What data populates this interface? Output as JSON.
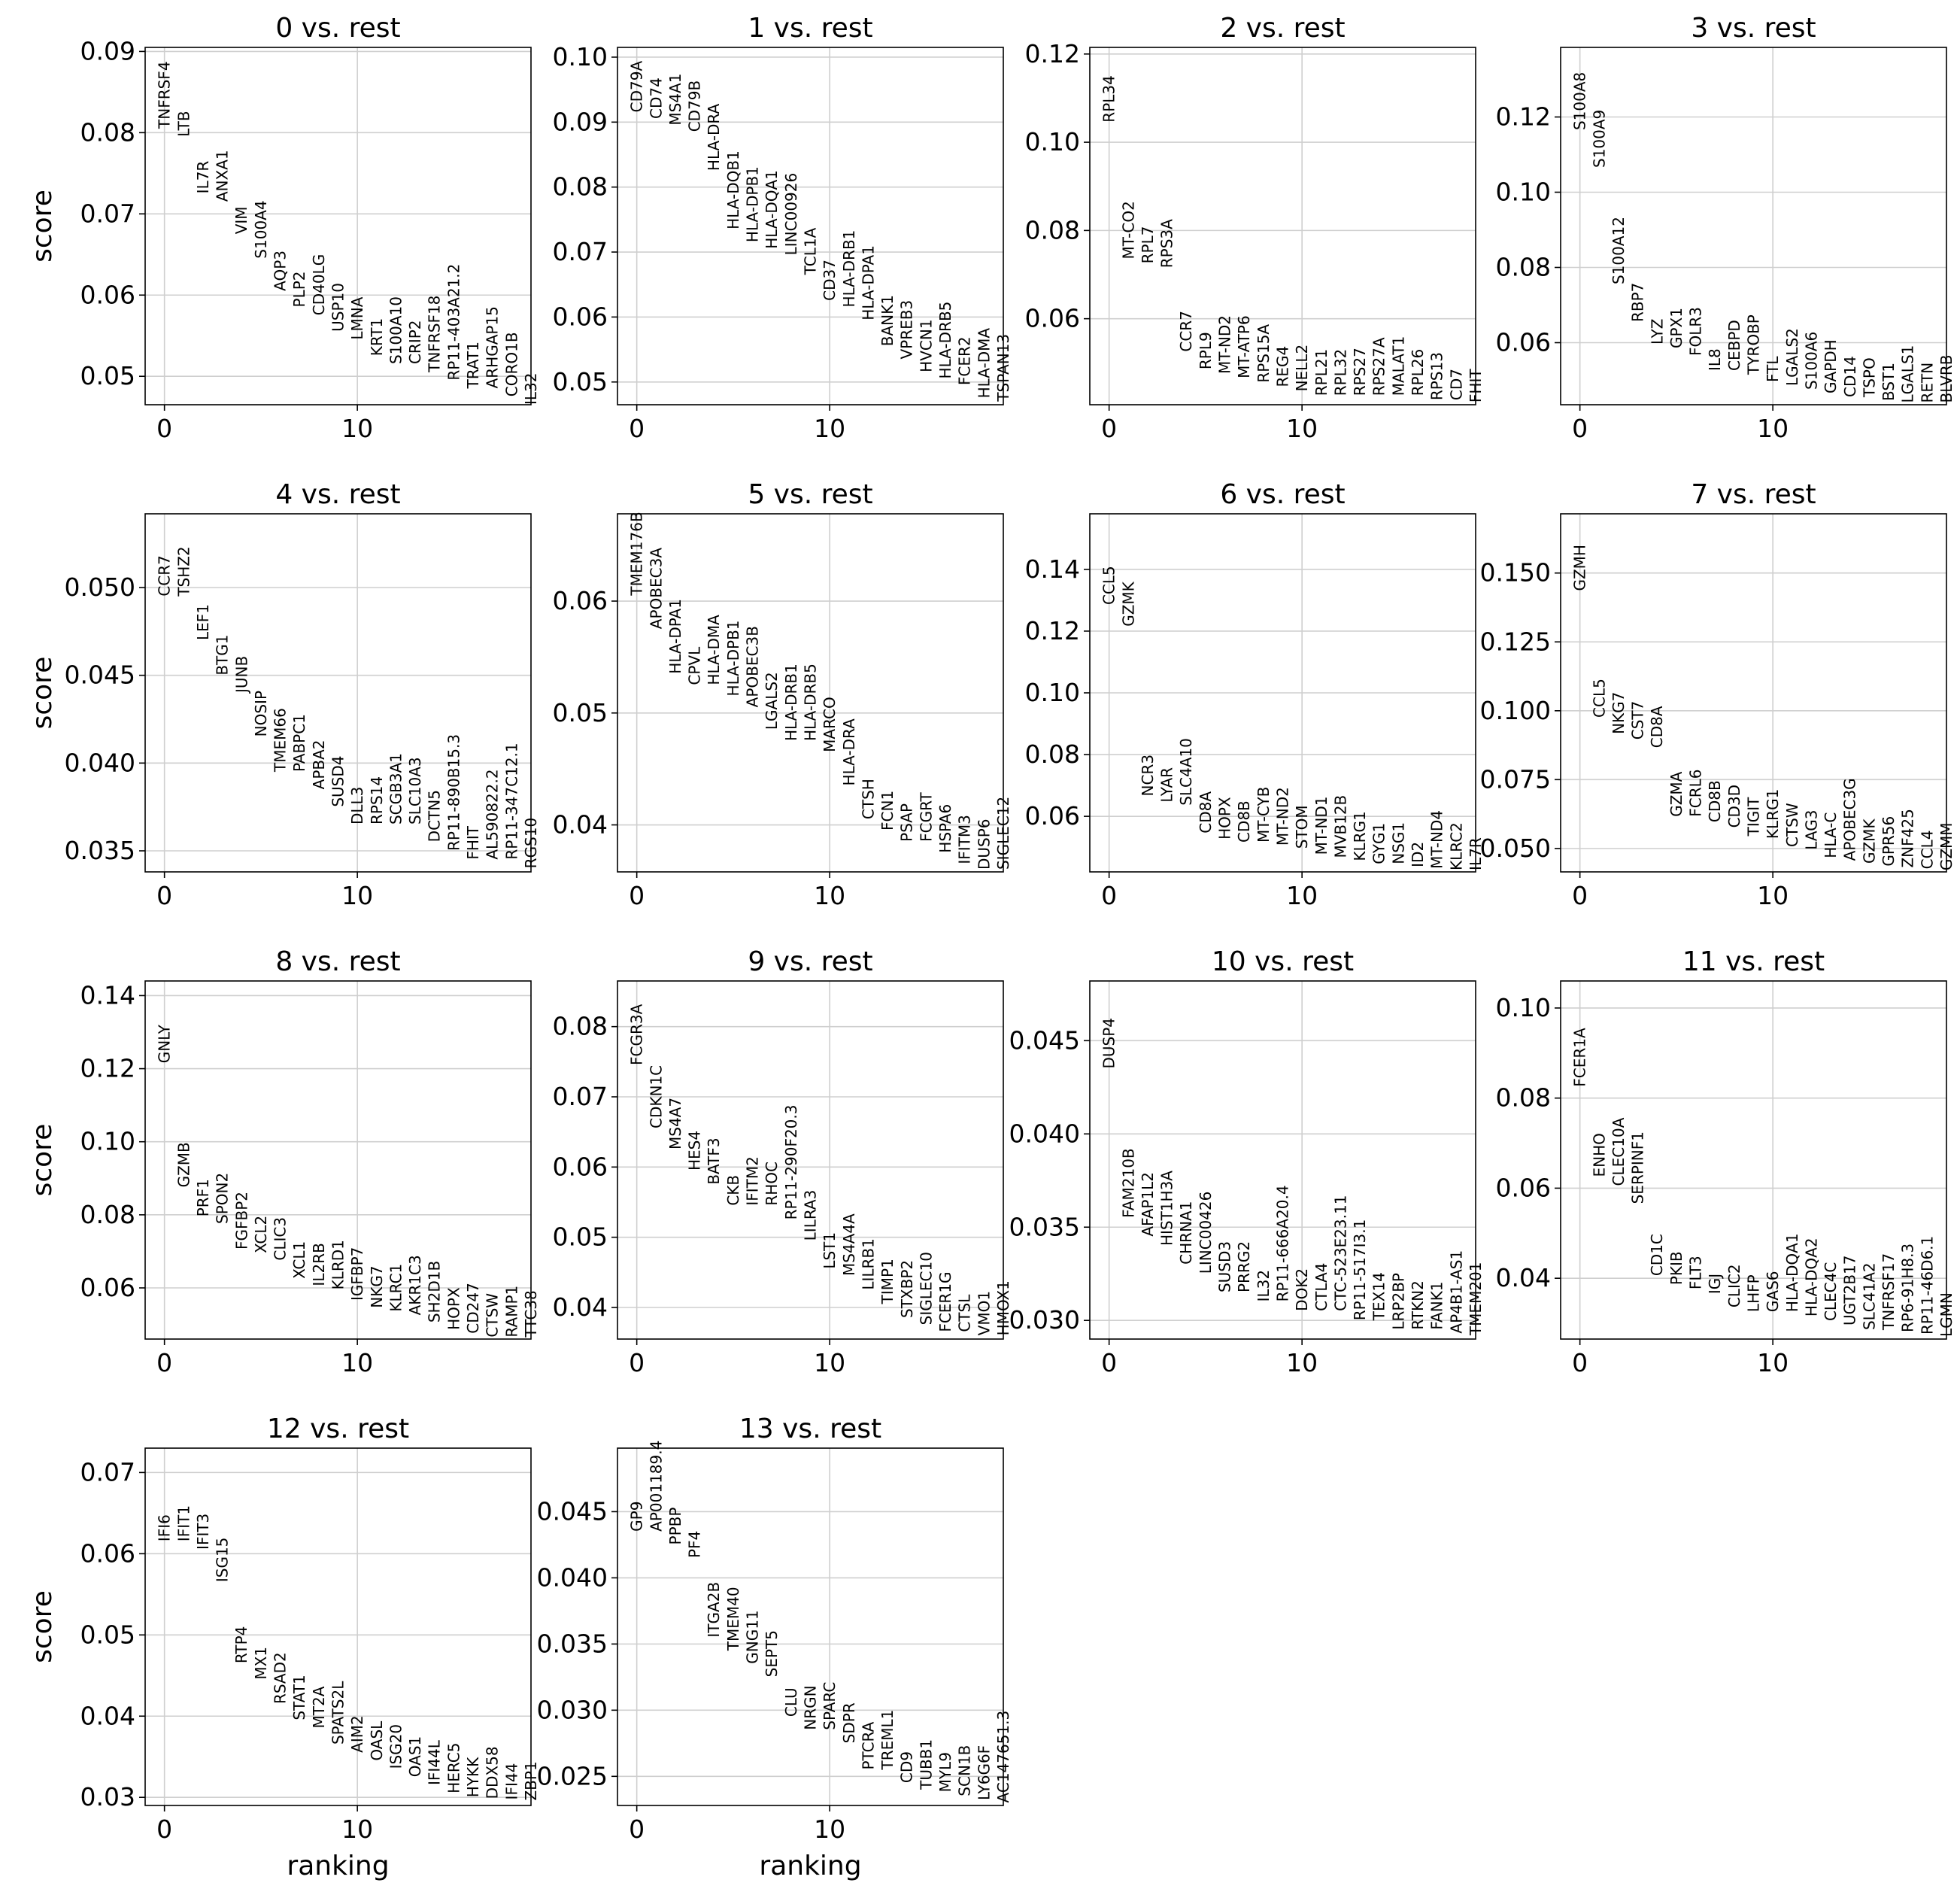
{
  "chart_data": [
    {
      "type": "scatter",
      "title": "0 vs. rest",
      "ylabel": "score",
      "xlabel": "",
      "xlim": [
        -1,
        19
      ],
      "ylim": [
        0.0465,
        0.0905
      ],
      "xticks": [
        0,
        10
      ],
      "yticks": [
        "0.05",
        "0.06",
        "0.07",
        "0.08",
        "0.09"
      ],
      "ytick_values": [
        0.05,
        0.06,
        0.07,
        0.08,
        0.09
      ],
      "genes": [
        "TNFRSF4",
        "LTB",
        "IL7R",
        "ANXA1",
        "VIM",
        "S100A4",
        "AQP3",
        "PLP2",
        "CD40LG",
        "USP10",
        "LMNA",
        "KRT1",
        "S100A10",
        "CRIP2",
        "TNFRSF18",
        "RP11-403A21.2",
        "TRAT1",
        "ARHGAP15",
        "CORO1B",
        "IL32"
      ],
      "scores": [
        0.0805,
        0.0795,
        0.0725,
        0.0715,
        0.0675,
        0.0645,
        0.0605,
        0.0585,
        0.0575,
        0.0555,
        0.0545,
        0.0525,
        0.0515,
        0.0515,
        0.0505,
        0.0495,
        0.0485,
        0.0485,
        0.0475,
        0.0465
      ]
    },
    {
      "type": "scatter",
      "title": "1 vs. rest",
      "ylabel": "",
      "xlabel": "",
      "xlim": [
        -1,
        19
      ],
      "ylim": [
        0.0465,
        0.1015
      ],
      "xticks": [
        0,
        10
      ],
      "yticks": [
        "0.05",
        "0.06",
        "0.07",
        "0.08",
        "0.09",
        "0.10"
      ],
      "ytick_values": [
        0.05,
        0.06,
        0.07,
        0.08,
        0.09,
        0.1
      ],
      "genes": [
        "CD79A",
        "CD74",
        "MS4A1",
        "CD79B",
        "HLA-DRA",
        "HLA-DQB1",
        "HLA-DPB1",
        "HLA-DQA1",
        "LINC00926",
        "TCL1A",
        "CD37",
        "HLA-DRB1",
        "HLA-DPA1",
        "BANK1",
        "VPREB3",
        "HVCN1",
        "HLA-DRB5",
        "FCER2",
        "HLA-DMA",
        "TSPAN13"
      ],
      "scores": [
        0.0915,
        0.0905,
        0.0895,
        0.0885,
        0.0825,
        0.0735,
        0.0715,
        0.0705,
        0.0695,
        0.0665,
        0.0625,
        0.0615,
        0.0595,
        0.0555,
        0.0535,
        0.0515,
        0.0505,
        0.0495,
        0.0475,
        0.047
      ]
    },
    {
      "type": "scatter",
      "title": "2 vs. rest",
      "ylabel": "",
      "xlabel": "",
      "xlim": [
        -1,
        19
      ],
      "ylim": [
        0.0405,
        0.1215
      ],
      "xticks": [
        0,
        10
      ],
      "yticks": [
        "0.06",
        "0.08",
        "0.10",
        "0.12"
      ],
      "ytick_values": [
        0.06,
        0.08,
        0.1,
        0.12
      ],
      "genes": [
        "RPL34",
        "MT-CO2",
        "RPL7",
        "RPS3A",
        "CCR7",
        "RPL9",
        "MT-ND2",
        "MT-ATP6",
        "RPS15A",
        "REG4",
        "NELL2",
        "RPL21",
        "RPL32",
        "RPS27",
        "RPS27A",
        "MALAT1",
        "RPL26",
        "RPS13",
        "CD7",
        "FHIT"
      ],
      "scores": [
        0.1045,
        0.0735,
        0.0725,
        0.0715,
        0.0525,
        0.0485,
        0.0475,
        0.0465,
        0.0455,
        0.0445,
        0.0435,
        0.0425,
        0.0425,
        0.0425,
        0.0425,
        0.0425,
        0.0425,
        0.0415,
        0.0415,
        0.041
      ]
    },
    {
      "type": "scatter",
      "title": "3 vs. rest",
      "ylabel": "",
      "xlabel": "",
      "xlim": [
        -1,
        19
      ],
      "ylim": [
        0.0435,
        0.1385
      ],
      "xticks": [
        0,
        10
      ],
      "yticks": [
        "0.06",
        "0.08",
        "0.10",
        "0.12"
      ],
      "ytick_values": [
        0.06,
        0.08,
        0.1,
        0.12
      ],
      "genes": [
        "S100A8",
        "S100A9",
        "S100A12",
        "RBP7",
        "LYZ",
        "GPX1",
        "FOLR3",
        "IL8",
        "CEBPD",
        "TYROBP",
        "FTL",
        "LGALS2",
        "S100A6",
        "GAPDH",
        "CD14",
        "TSPO",
        "BST1",
        "LGALS1",
        "RETN",
        "BLVRB"
      ],
      "scores": [
        0.1165,
        0.1065,
        0.0755,
        0.0655,
        0.0595,
        0.0585,
        0.0565,
        0.0525,
        0.0525,
        0.0515,
        0.0495,
        0.0485,
        0.0475,
        0.0465,
        0.0455,
        0.0455,
        0.0445,
        0.044,
        0.044,
        0.044
      ]
    },
    {
      "type": "scatter",
      "title": "4 vs. rest",
      "ylabel": "score",
      "xlabel": "",
      "xlim": [
        -1,
        19
      ],
      "ylim": [
        0.0338,
        0.0542
      ],
      "xticks": [
        0,
        10
      ],
      "yticks": [
        "0.035",
        "0.040",
        "0.045",
        "0.050"
      ],
      "ytick_values": [
        0.035,
        0.04,
        0.045,
        0.05
      ],
      "genes": [
        "CCR7",
        "TSHZ2",
        "LEF1",
        "BTG1",
        "JUNB",
        "NOSIP",
        "TMEM66",
        "PABPC1",
        "APBA2",
        "SUSD4",
        "DLL3",
        "RPS14",
        "SCGB3A1",
        "SLC10A3",
        "DCTN5",
        "RP11-890B15.3",
        "FHIT",
        "AL590822.2",
        "RP11-347C12.1",
        "RGS10"
      ],
      "scores": [
        0.0495,
        0.0495,
        0.047,
        0.045,
        0.044,
        0.0415,
        0.0395,
        0.0395,
        0.0385,
        0.0375,
        0.0365,
        0.0365,
        0.0365,
        0.0365,
        0.0355,
        0.035,
        0.0345,
        0.0345,
        0.0345,
        0.034
      ]
    },
    {
      "type": "scatter",
      "title": "5 vs. rest",
      "ylabel": "",
      "xlabel": "",
      "xlim": [
        -1,
        19
      ],
      "ylim": [
        0.0358,
        0.0678
      ],
      "xticks": [
        0,
        10
      ],
      "yticks": [
        "0.04",
        "0.05",
        "0.06"
      ],
      "ytick_values": [
        0.04,
        0.05,
        0.06
      ],
      "genes": [
        "TMEM176B",
        "APOBEC3A",
        "HLA-DPA1",
        "CPVL",
        "HLA-DMA",
        "HLA-DPB1",
        "APOBEC3B",
        "LGALS2",
        "HLA-DRB1",
        "HLA-DRB5",
        "MARCO",
        "HLA-DRA",
        "CTSH",
        "FCN1",
        "PSAP",
        "FCGRT",
        "HSPA6",
        "IFITM3",
        "DUSP6",
        "SIGLEC12"
      ],
      "scores": [
        0.0605,
        0.0575,
        0.0535,
        0.0525,
        0.0525,
        0.0515,
        0.0505,
        0.0485,
        0.0475,
        0.0475,
        0.0465,
        0.0435,
        0.0405,
        0.0395,
        0.0385,
        0.0385,
        0.0375,
        0.0365,
        0.036,
        0.036
      ]
    },
    {
      "type": "scatter",
      "title": "6 vs. rest",
      "ylabel": "",
      "xlabel": "",
      "xlim": [
        -1,
        19
      ],
      "ylim": [
        0.042,
        0.158
      ],
      "xticks": [
        0,
        10
      ],
      "yticks": [
        "0.06",
        "0.08",
        "0.10",
        "0.12",
        "0.14"
      ],
      "ytick_values": [
        0.06,
        0.08,
        0.1,
        0.12,
        0.14
      ],
      "genes": [
        "CCL5",
        "GZMK",
        "NCR3",
        "LYAR",
        "SLC4A10",
        "CD8A",
        "HOPX",
        "CD8B",
        "MT-CYB",
        "MT-ND2",
        "STOM",
        "MT-ND1",
        "MVB12B",
        "KLRG1",
        "GYG1",
        "NSG1",
        "ID2",
        "MT-ND4",
        "KLRC2",
        "IL7R"
      ],
      "scores": [
        0.1285,
        0.1215,
        0.0665,
        0.0645,
        0.0635,
        0.0545,
        0.0525,
        0.0515,
        0.0515,
        0.0505,
        0.0495,
        0.0475,
        0.0465,
        0.0455,
        0.0445,
        0.0445,
        0.0435,
        0.043,
        0.0425,
        0.0425
      ]
    },
    {
      "type": "scatter",
      "title": "7 vs. rest",
      "ylabel": "",
      "xlabel": "",
      "xlim": [
        -1,
        19
      ],
      "ylim": [
        0.0415,
        0.1715
      ],
      "xticks": [
        0,
        10
      ],
      "yticks": [
        "0.050",
        "0.075",
        "0.100",
        "0.125",
        "0.150"
      ],
      "ytick_values": [
        0.05,
        0.075,
        0.1,
        0.125,
        0.15
      ],
      "genes": [
        "GZMH",
        "CCL5",
        "NKG7",
        "CST7",
        "CD8A",
        "GZMA",
        "FCRL6",
        "CD8B",
        "CD3D",
        "TIGIT",
        "KLRG1",
        "CTSW",
        "LAG3",
        "HLA-C",
        "APOBEC3G",
        "GZMK",
        "GPR56",
        "ZNF425",
        "CCL4",
        "GZMM"
      ],
      "scores": [
        0.1435,
        0.0975,
        0.0915,
        0.0895,
        0.0865,
        0.0615,
        0.0615,
        0.0595,
        0.0575,
        0.0545,
        0.0535,
        0.0505,
        0.0495,
        0.0465,
        0.0455,
        0.0445,
        0.0435,
        0.043,
        0.0425,
        0.042
      ]
    },
    {
      "type": "scatter",
      "title": "8 vs. rest",
      "ylabel": "score",
      "xlabel": "",
      "xlim": [
        -1,
        19
      ],
      "ylim": [
        0.046,
        0.144
      ],
      "xticks": [
        0,
        10
      ],
      "yticks": [
        "0.06",
        "0.08",
        "0.10",
        "0.12",
        "0.14"
      ],
      "ytick_values": [
        0.06,
        0.08,
        0.1,
        0.12,
        0.14
      ],
      "genes": [
        "GNLY",
        "GZMB",
        "PRF1",
        "SPON2",
        "FGFBP2",
        "XCL2",
        "CLIC3",
        "XCL1",
        "IL2RB",
        "KLRD1",
        "IGFBP7",
        "NKG7",
        "KLRC1",
        "AKR1C3",
        "SH2D1B",
        "HOPX",
        "CD247",
        "CTSW",
        "RAMP1",
        "TTC38"
      ],
      "scores": [
        0.1215,
        0.0875,
        0.0795,
        0.0775,
        0.0705,
        0.0695,
        0.0675,
        0.0625,
        0.0605,
        0.0595,
        0.0565,
        0.0545,
        0.0535,
        0.0525,
        0.0505,
        0.0485,
        0.0475,
        0.0465,
        0.0465,
        0.0465
      ]
    },
    {
      "type": "scatter",
      "title": "9 vs. rest",
      "ylabel": "",
      "xlabel": "",
      "xlim": [
        -1,
        19
      ],
      "ylim": [
        0.0355,
        0.0865
      ],
      "xticks": [
        0,
        10
      ],
      "yticks": [
        "0.04",
        "0.05",
        "0.06",
        "0.07",
        "0.08"
      ],
      "ytick_values": [
        0.04,
        0.05,
        0.06,
        0.07,
        0.08
      ],
      "genes": [
        "FCGR3A",
        "CDKN1C",
        "MS4A7",
        "HES4",
        "BATF3",
        "CKB",
        "IFITM2",
        "RHOC",
        "RP11-290F20.3",
        "LILRA3",
        "LST1",
        "MS4A4A",
        "LILRB1",
        "TIMP1",
        "STXBP2",
        "SIGLEC10",
        "FCER1G",
        "CTSL",
        "VMO1",
        "HMOX1"
      ],
      "scores": [
        0.0745,
        0.0655,
        0.0625,
        0.0595,
        0.0575,
        0.0545,
        0.0545,
        0.0545,
        0.0525,
        0.0495,
        0.0455,
        0.0445,
        0.0425,
        0.0405,
        0.0385,
        0.0375,
        0.0365,
        0.0365,
        0.036,
        0.036
      ]
    },
    {
      "type": "scatter",
      "title": "10 vs. rest",
      "ylabel": "",
      "xlabel": "",
      "xlim": [
        -1,
        19
      ],
      "ylim": [
        0.029,
        0.0482
      ],
      "xticks": [
        0,
        10
      ],
      "yticks": [
        "0.030",
        "0.035",
        "0.040",
        "0.045"
      ],
      "ytick_values": [
        0.03,
        0.035,
        0.04,
        0.045
      ],
      "genes": [
        "DUSP4",
        "FAM210B",
        "AFAP1L2",
        "HIST1H3A",
        "CHRNA1",
        "LINC00426",
        "SUSD3",
        "PRRG2",
        "IL32",
        "RP11-666A20.4",
        "DOK2",
        "CTLA4",
        "CTC-523E23.11",
        "RP11-517I3.1",
        "TEX14",
        "LRP2BP",
        "RTKN2",
        "FANK1",
        "AP4B1-AS1",
        "TMEM201"
      ],
      "scores": [
        0.0435,
        0.0355,
        0.0345,
        0.034,
        0.033,
        0.0325,
        0.0315,
        0.0315,
        0.031,
        0.031,
        0.0305,
        0.0305,
        0.0305,
        0.03,
        0.03,
        0.0295,
        0.0295,
        0.0295,
        0.0293,
        0.0292
      ]
    },
    {
      "type": "scatter",
      "title": "11 vs. rest",
      "ylabel": "",
      "xlabel": "",
      "xlim": [
        -1,
        19
      ],
      "ylim": [
        0.0265,
        0.106
      ],
      "xticks": [
        0,
        10
      ],
      "yticks": [
        "0.04",
        "0.06",
        "0.08",
        "0.10"
      ],
      "ytick_values": [
        0.04,
        0.06,
        0.08,
        0.1
      ],
      "genes": [
        "FCER1A",
        "ENHO",
        "CLEC10A",
        "SERPINF1",
        "CD1C",
        "PKIB",
        "FLT3",
        "IGJ",
        "CLIC2",
        "LHFP",
        "GAS6",
        "HLA-DQA1",
        "HLA-DQA2",
        "CLEC4C",
        "UGT2B17",
        "SLC41A2",
        "TNFRSF17",
        "RP6-91H8.3",
        "RP11-46D6.1",
        "LGMN"
      ],
      "scores": [
        0.0825,
        0.0625,
        0.0605,
        0.0565,
        0.0405,
        0.0385,
        0.0375,
        0.0365,
        0.0335,
        0.0325,
        0.0325,
        0.0325,
        0.0315,
        0.0305,
        0.0295,
        0.0285,
        0.0285,
        0.028,
        0.0275,
        0.027
      ]
    },
    {
      "type": "scatter",
      "title": "12 vs. rest",
      "ylabel": "score",
      "xlabel": "ranking",
      "xlim": [
        -1,
        19
      ],
      "ylim": [
        0.029,
        0.073
      ],
      "xticks": [
        0,
        10
      ],
      "yticks": [
        "0.03",
        "0.04",
        "0.05",
        "0.06",
        "0.07"
      ],
      "ytick_values": [
        0.03,
        0.04,
        0.05,
        0.06,
        0.07
      ],
      "genes": [
        "IFI6",
        "IFIT1",
        "IFIT3",
        "ISG15",
        "RTP4",
        "MX1",
        "RSAD2",
        "STAT1",
        "MT2A",
        "SPATS2L",
        "AIM2",
        "OASL",
        "ISG20",
        "OAS1",
        "IFI44L",
        "HERC5",
        "HYKK",
        "DDX58",
        "IFI44",
        "ZBP1"
      ],
      "scores": [
        0.0615,
        0.0615,
        0.0605,
        0.0565,
        0.0465,
        0.0445,
        0.0415,
        0.0395,
        0.0385,
        0.0365,
        0.0355,
        0.0345,
        0.0335,
        0.0325,
        0.0315,
        0.0305,
        0.03,
        0.0298,
        0.0297,
        0.0296
      ]
    },
    {
      "type": "scatter",
      "title": "13 vs. rest",
      "ylabel": "",
      "xlabel": "ranking",
      "xlim": [
        -1,
        19
      ],
      "ylim": [
        0.0228,
        0.0498
      ],
      "xticks": [
        0,
        10
      ],
      "yticks": [
        "0.025",
        "0.030",
        "0.035",
        "0.040",
        "0.045"
      ],
      "ytick_values": [
        0.025,
        0.03,
        0.035,
        0.04,
        0.045
      ],
      "genes": [
        "GP9",
        "AP001189.4",
        "PPBP",
        "PF4",
        "ITGA2B",
        "TMEM40",
        "GNG11",
        "SEPT5",
        "CLU",
        "NRGN",
        "SPARC",
        "SDPR",
        "PTCRA",
        "TREML1",
        "CD9",
        "TUBB1",
        "MYL9",
        "SCN1B",
        "LY6G6F",
        "AC147651.3"
      ],
      "scores": [
        0.0435,
        0.0435,
        0.0425,
        0.0415,
        0.0355,
        0.0345,
        0.0335,
        0.0325,
        0.0295,
        0.0285,
        0.0285,
        0.0275,
        0.0255,
        0.0255,
        0.0245,
        0.024,
        0.0238,
        0.0235,
        0.0232,
        0.023
      ]
    }
  ]
}
